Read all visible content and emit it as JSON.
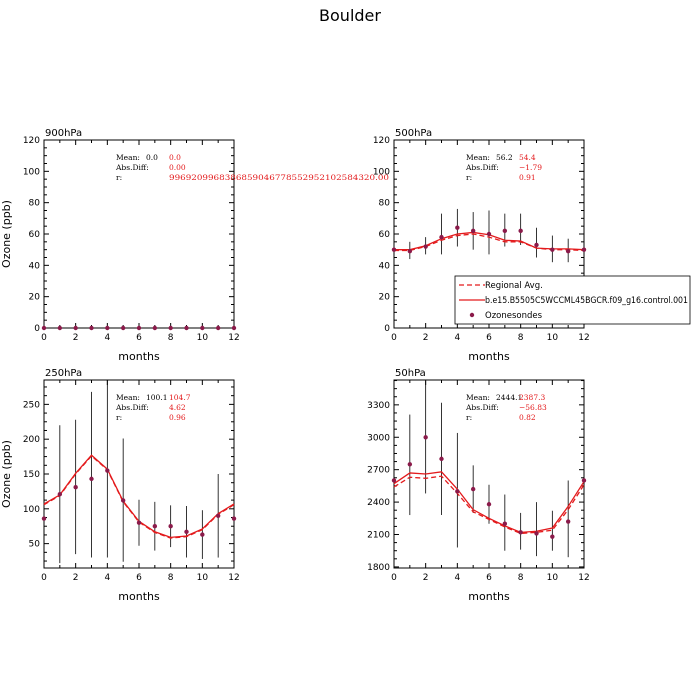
{
  "title": "Boulder",
  "colors": {
    "model": "#e31a1c",
    "obs": "#8b1a4a",
    "obs_bar": "#000000",
    "axis": "#000000"
  },
  "legend": [
    {
      "label": "Regional Avg.",
      "style": "dashed-line"
    },
    {
      "label": "b.e15.B5505C5WCCML45BGCR.f09_g16.control.001",
      "style": "solid-line"
    },
    {
      "label": "Ozonesondes",
      "style": "marker"
    }
  ],
  "stat_labels": {
    "mean": "Mean:",
    "absdiff": "Abs.Diff:",
    "r": "r:"
  },
  "chart_data": [
    {
      "type": "line",
      "title": "900hPa",
      "xlabel": "months",
      "ylabel": "Ozone (ppb)",
      "xlim": [
        0,
        12
      ],
      "ylim": [
        0,
        120
      ],
      "xticks": [
        "0",
        "2",
        "4",
        "6",
        "8",
        "10",
        "12"
      ],
      "xtick_values": [
        0,
        2,
        4,
        6,
        8,
        10,
        12
      ],
      "yticks": [
        "0",
        "20",
        "40",
        "60",
        "80",
        "100",
        "120"
      ],
      "ytick_values": [
        0,
        20,
        40,
        60,
        80,
        100,
        120
      ],
      "stats": {
        "mean_obs": "0.0",
        "mean_model": "0.0",
        "absdiff": "0.00",
        "r": "99692099683868590467785529521025843​20.00"
      },
      "x": [
        0,
        1,
        2,
        3,
        4,
        5,
        6,
        7,
        8,
        9,
        10,
        11,
        12
      ],
      "regional": [],
      "model": [],
      "obs": [
        0,
        0,
        0,
        0,
        0,
        0,
        0,
        0,
        0,
        0,
        0,
        0,
        0
      ],
      "obs_low": [],
      "obs_high": []
    },
    {
      "type": "line",
      "title": "500hPa",
      "xlabel": "months",
      "ylabel": "",
      "xlim": [
        0,
        12
      ],
      "ylim": [
        0,
        120
      ],
      "xticks": [
        "0",
        "2",
        "4",
        "6",
        "8",
        "10",
        "12"
      ],
      "xtick_values": [
        0,
        2,
        4,
        6,
        8,
        10,
        12
      ],
      "yticks": [
        "0",
        "20",
        "40",
        "60",
        "80",
        "100",
        "120"
      ],
      "ytick_values": [
        0,
        20,
        40,
        60,
        80,
        100,
        120
      ],
      "stats": {
        "mean_obs": "56.2",
        "mean_model": "54.4",
        "absdiff": "−1.79",
        "r": "0.91"
      },
      "x": [
        0,
        1,
        2,
        3,
        4,
        5,
        6,
        7,
        8,
        9,
        10,
        11,
        12
      ],
      "regional": [
        49.5,
        49.5,
        52,
        56,
        59,
        60,
        58,
        55,
        55,
        51,
        50,
        50,
        49.5
      ],
      "model": [
        50,
        50,
        52.5,
        57,
        60,
        61,
        59.5,
        56,
        55.5,
        51,
        50.5,
        50.5,
        50
      ],
      "obs": [
        50,
        49,
        52,
        58,
        64,
        62,
        60,
        62,
        62,
        53,
        50,
        49,
        50
      ],
      "obs_low": [
        47,
        44,
        47,
        47,
        52,
        50,
        47,
        52,
        53,
        45,
        42,
        42,
        47
      ],
      "obs_high": [
        53,
        55,
        58,
        73,
        76,
        74,
        75,
        73,
        73,
        64,
        59,
        57,
        53
      ]
    },
    {
      "type": "line",
      "title": "250hPa",
      "xlabel": "months",
      "ylabel": "Ozone (ppb)",
      "xlim": [
        0,
        12
      ],
      "ylim": [
        15,
        285
      ],
      "xticks": [
        "0",
        "2",
        "4",
        "6",
        "8",
        "10",
        "12"
      ],
      "xtick_values": [
        0,
        2,
        4,
        6,
        8,
        10,
        12
      ],
      "yticks": [
        "50",
        "100",
        "150",
        "200",
        "250"
      ],
      "ytick_values": [
        50,
        100,
        150,
        200,
        250
      ],
      "stats": {
        "mean_obs": "100.1",
        "mean_model": "104.7",
        "absdiff": "4.62",
        "r": "0.96"
      },
      "x": [
        0,
        1,
        2,
        3,
        4,
        5,
        6,
        7,
        8,
        9,
        10,
        11,
        12
      ],
      "regional": [
        106,
        119,
        150,
        176,
        156,
        110,
        81,
        66,
        58,
        60,
        70,
        92,
        106
      ],
      "model": [
        107,
        120,
        151,
        177,
        157,
        111,
        82,
        67,
        59,
        61,
        71,
        93,
        107
      ],
      "obs": [
        86,
        121,
        131,
        143,
        155,
        112,
        80,
        75,
        75,
        67,
        63,
        90,
        86
      ],
      "obs_low": [
        33,
        22,
        35,
        30,
        30,
        24,
        47,
        40,
        45,
        30,
        28,
        30,
        33
      ],
      "obs_high": [
        139,
        220,
        228,
        268,
        285,
        201,
        113,
        110,
        105,
        104,
        98,
        150,
        139
      ]
    },
    {
      "type": "line",
      "title": "50hPa",
      "xlabel": "months",
      "ylabel": "",
      "xlim": [
        0,
        12
      ],
      "ylim": [
        1790,
        3530
      ],
      "xticks": [
        "0",
        "2",
        "4",
        "6",
        "8",
        "10",
        "12"
      ],
      "xtick_values": [
        0,
        2,
        4,
        6,
        8,
        10,
        12
      ],
      "yticks": [
        "1800",
        "2100",
        "2400",
        "2700",
        "3000",
        "3300"
      ],
      "ytick_values": [
        1800,
        2100,
        2400,
        2700,
        3000,
        3300
      ],
      "stats": {
        "mean_obs": "2444.1",
        "mean_model": "2387.3",
        "absdiff": "−56.83",
        "r": "0.82"
      },
      "x": [
        0,
        1,
        2,
        3,
        4,
        5,
        6,
        7,
        8,
        9,
        10,
        11,
        12
      ],
      "regional": [
        2540,
        2630,
        2620,
        2640,
        2480,
        2310,
        2240,
        2170,
        2110,
        2120,
        2140,
        2330,
        2560
      ],
      "model": [
        2570,
        2670,
        2660,
        2680,
        2520,
        2330,
        2250,
        2180,
        2120,
        2130,
        2160,
        2360,
        2590
      ],
      "obs": [
        2600,
        2750,
        3000,
        2800,
        2500,
        2520,
        2380,
        2200,
        2120,
        2110,
        2080,
        2220,
        2600
      ],
      "obs_low": [
        2510,
        2280,
        2480,
        2280,
        1980,
        2300,
        2200,
        1950,
        1960,
        1900,
        1950,
        1890,
        2510
      ],
      "obs_high": [
        2690,
        3210,
        3520,
        3320,
        3040,
        2740,
        2560,
        2470,
        2300,
        2400,
        2320,
        2600,
        2690
      ]
    }
  ]
}
